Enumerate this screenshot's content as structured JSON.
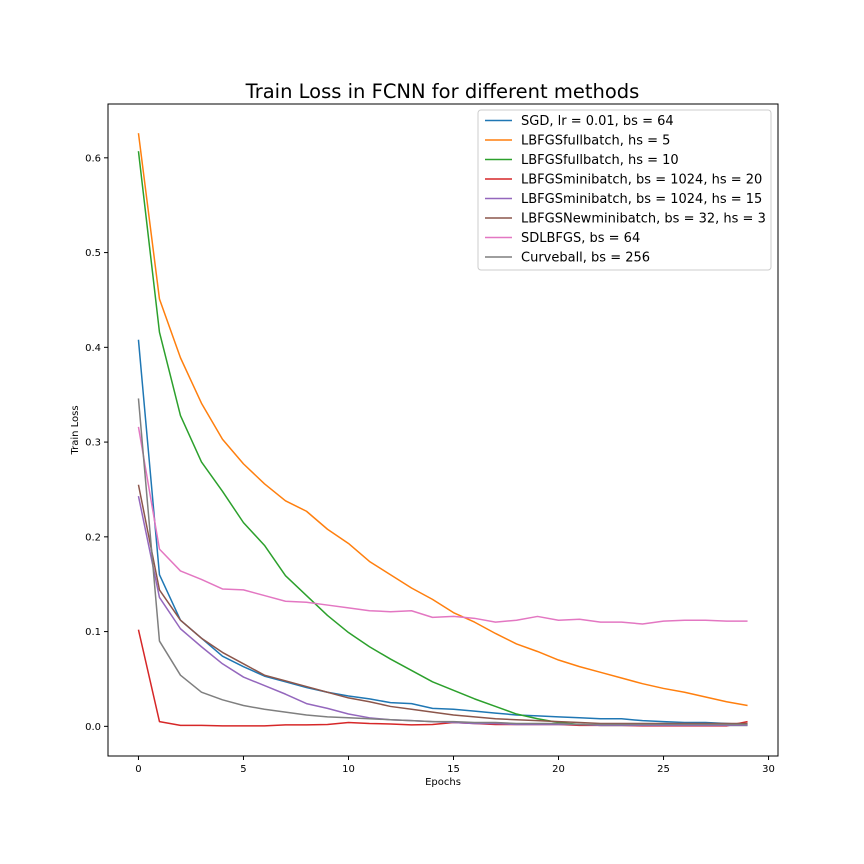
{
  "chart_data": {
    "type": "line",
    "title": "Train Loss in FCNN for different methods",
    "xlabel": "Epochs",
    "ylabel": "Train Loss",
    "xlim": [
      -1.45,
      30.45
    ],
    "ylim": [
      -0.0313,
      0.6568
    ],
    "xticks": [
      0,
      5,
      10,
      15,
      20,
      25,
      30
    ],
    "xtick_labels": [
      "0",
      "5",
      "10",
      "15",
      "20",
      "25",
      "30"
    ],
    "yticks": [
      0.0,
      0.1,
      0.2,
      0.3,
      0.4,
      0.5,
      0.6
    ],
    "ytick_labels": [
      "0.0",
      "0.1",
      "0.2",
      "0.3",
      "0.4",
      "0.5",
      "0.6"
    ],
    "grid": false,
    "legend_position": "upper right",
    "x": [
      0,
      1,
      2,
      3,
      4,
      5,
      6,
      7,
      8,
      9,
      10,
      11,
      12,
      13,
      14,
      15,
      16,
      17,
      18,
      19,
      20,
      21,
      22,
      23,
      24,
      25,
      26,
      27,
      28,
      29
    ],
    "series": [
      {
        "name": "SGD, lr = 0.01, bs = 64",
        "color": "#1f77b4",
        "values": [
          0.408,
          0.16,
          0.112,
          0.093,
          0.074,
          0.063,
          0.053,
          0.047,
          0.041,
          0.036,
          0.032,
          0.029,
          0.025,
          0.024,
          0.019,
          0.018,
          0.016,
          0.014,
          0.012,
          0.011,
          0.01,
          0.009,
          0.008,
          0.008,
          0.006,
          0.005,
          0.004,
          0.004,
          0.003,
          0.002
        ]
      },
      {
        "name": "LBFGSfullbatch, hs = 5",
        "color": "#ff7f0e",
        "values": [
          0.626,
          0.451,
          0.389,
          0.341,
          0.303,
          0.277,
          0.256,
          0.238,
          0.227,
          0.208,
          0.193,
          0.174,
          0.16,
          0.146,
          0.134,
          0.12,
          0.11,
          0.098,
          0.087,
          0.079,
          0.07,
          0.063,
          0.057,
          0.051,
          0.045,
          0.04,
          0.036,
          0.031,
          0.026,
          0.022
        ]
      },
      {
        "name": "LBFGSfullbatch, hs = 10",
        "color": "#2ca02c",
        "values": [
          0.607,
          0.416,
          0.328,
          0.279,
          0.248,
          0.215,
          0.191,
          0.159,
          0.138,
          0.117,
          0.099,
          0.084,
          0.071,
          0.059,
          0.047,
          0.038,
          0.029,
          0.021,
          0.013,
          0.008,
          0.004,
          0.002,
          0.001,
          0.001,
          0.001,
          0.001,
          0.001,
          0.001,
          0.001,
          0.001
        ]
      },
      {
        "name": "LBFGSminibatch, bs = 1024, hs = 20",
        "color": "#d62728",
        "values": [
          0.102,
          0.005,
          0.001,
          0.001,
          0.0005,
          0.0005,
          0.0005,
          0.0015,
          0.0015,
          0.002,
          0.004,
          0.003,
          0.0025,
          0.0015,
          0.002,
          0.004,
          0.003,
          0.002,
          0.002,
          0.002,
          0.002,
          0.001,
          0.001,
          0.001,
          0.0005,
          0.0005,
          0.0005,
          0.0005,
          0.0005,
          0.005
        ]
      },
      {
        "name": "LBFGSminibatch, bs = 1024, hs = 15",
        "color": "#9467bd",
        "values": [
          0.243,
          0.136,
          0.103,
          0.084,
          0.066,
          0.052,
          0.043,
          0.034,
          0.024,
          0.019,
          0.013,
          0.009,
          0.007,
          0.006,
          0.005,
          0.004,
          0.003,
          0.003,
          0.002,
          0.002,
          0.002,
          0.002,
          0.001,
          0.001,
          0.001,
          0.001,
          0.001,
          0.001,
          0.001,
          0.001
        ]
      },
      {
        "name": "LBFGSNewminibatch, bs = 32, hs = 3",
        "color": "#8c564b",
        "values": [
          0.255,
          0.144,
          0.112,
          0.093,
          0.078,
          0.066,
          0.054,
          0.048,
          0.042,
          0.036,
          0.03,
          0.026,
          0.021,
          0.018,
          0.015,
          0.012,
          0.01,
          0.008,
          0.007,
          0.006,
          0.005,
          0.004,
          0.003,
          0.003,
          0.003,
          0.003,
          0.003,
          0.003,
          0.003,
          0.003
        ]
      },
      {
        "name": "SDLBFGS, bs = 64",
        "color": "#e377c2",
        "values": [
          0.316,
          0.187,
          0.164,
          0.155,
          0.145,
          0.144,
          0.138,
          0.132,
          0.131,
          0.128,
          0.125,
          0.122,
          0.121,
          0.122,
          0.115,
          0.116,
          0.114,
          0.11,
          0.112,
          0.116,
          0.112,
          0.113,
          0.11,
          0.11,
          0.108,
          0.111,
          0.112,
          0.112,
          0.111,
          0.111
        ]
      },
      {
        "name": "Curveball, bs = 256",
        "color": "#7f7f7f",
        "values": [
          0.346,
          0.09,
          0.054,
          0.036,
          0.028,
          0.022,
          0.018,
          0.015,
          0.012,
          0.01,
          0.009,
          0.008,
          0.007,
          0.006,
          0.005,
          0.005,
          0.004,
          0.004,
          0.003,
          0.003,
          0.003,
          0.002,
          0.002,
          0.002,
          0.002,
          0.002,
          0.002,
          0.002,
          0.002,
          0.002
        ]
      }
    ]
  }
}
